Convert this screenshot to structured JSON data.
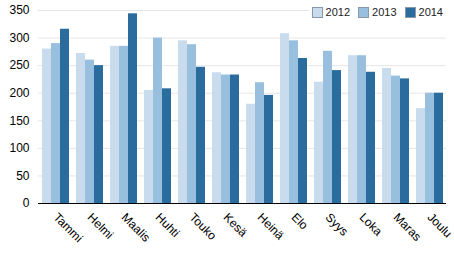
{
  "chart_data": {
    "type": "bar",
    "categories": [
      "Tammi",
      "Helmi",
      "Maalis",
      "Huhti",
      "Touko",
      "Kesä",
      "Heinä",
      "Elo",
      "Syys",
      "Loka",
      "Maras",
      "Joulu"
    ],
    "series": [
      {
        "name": "2012",
        "color": "#c8dcee",
        "values": [
          280,
          272,
          285,
          205,
          295,
          237,
          180,
          308,
          220,
          268,
          245,
          172
        ]
      },
      {
        "name": "2013",
        "color": "#98bfde",
        "values": [
          290,
          260,
          285,
          300,
          288,
          233,
          219,
          295,
          276,
          268,
          231,
          200
        ]
      },
      {
        "name": "2014",
        "color": "#2b6c9e",
        "values": [
          316,
          250,
          344,
          208,
          247,
          233,
          196,
          263,
          241,
          238,
          226,
          200
        ]
      }
    ],
    "ylim": [
      0,
      350
    ],
    "yticks": [
      0,
      50,
      100,
      150,
      200,
      250,
      300,
      350
    ],
    "grid": true,
    "legend": "top-right"
  }
}
